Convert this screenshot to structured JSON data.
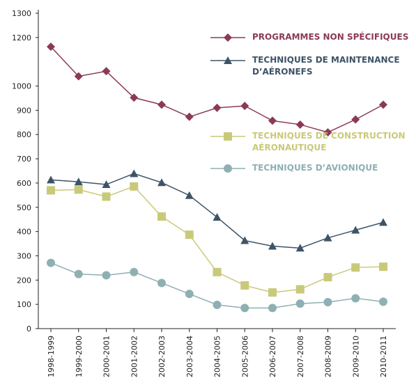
{
  "chart_data": {
    "type": "line",
    "categories": [
      "1998-1999",
      "1999-2000",
      "2000-2001",
      "2001-2002",
      "2002-2003",
      "2003-2004",
      "2004-2005",
      "2005-2006",
      "2006-2007",
      "2007-2008",
      "2008-2009",
      "2009-2010",
      "2010-2011"
    ],
    "series": [
      {
        "name": "PROGRAMMES NON SPÉCIFIQUES",
        "color": "#8b3a55",
        "marker": "diamond",
        "values": [
          1162,
          1040,
          1061,
          952,
          923,
          873,
          910,
          918,
          857,
          841,
          809,
          862,
          923
        ]
      },
      {
        "name": "TECHNIQUES DE MAINTENANCE D’AÉRONEFS",
        "color": "#3d5468",
        "marker": "triangle",
        "values": [
          613,
          605,
          594,
          639,
          602,
          549,
          459,
          363,
          340,
          332,
          374,
          406,
          438
        ]
      },
      {
        "name": "TECHNIQUES DE CONSTRUCTION AÉRONAUTIQUE",
        "color": "#c9c97a",
        "marker": "square",
        "values": [
          570,
          573,
          544,
          586,
          462,
          387,
          233,
          178,
          149,
          162,
          212,
          252,
          255
        ]
      },
      {
        "name": "TECHNIQUES D’AVIONIQUE",
        "color": "#8fb0b3",
        "marker": "circle",
        "values": [
          271,
          225,
          220,
          233,
          188,
          143,
          98,
          85,
          85,
          103,
          109,
          125,
          111
        ]
      }
    ],
    "ylim": [
      0,
      1300
    ],
    "yticks": [
      0,
      100,
      200,
      300,
      400,
      500,
      600,
      700,
      800,
      900,
      1000,
      1200,
      1300
    ]
  }
}
